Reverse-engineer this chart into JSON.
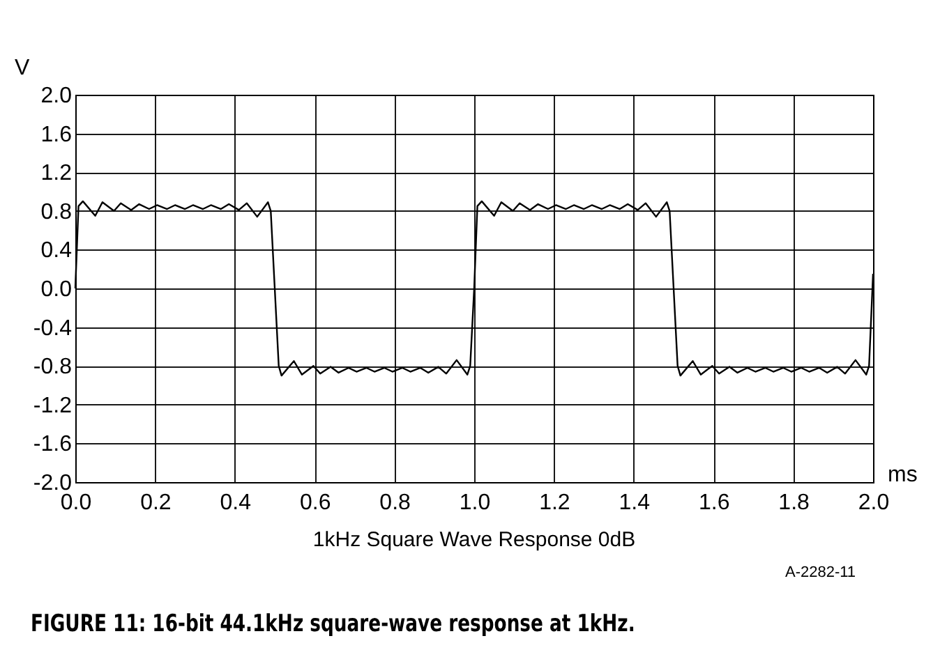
{
  "chart_data": {
    "type": "line",
    "title": "1kHz Square Wave Response 0dB",
    "xlabel": "ms",
    "ylabel": "V",
    "annotations": [
      "A-2282-11",
      "FIGURE 11: 16-bit 44.1kHz square-wave response at 1kHz."
    ],
    "x": [
      0,
      0.008,
      0.019,
      0.05,
      0.068,
      0.097,
      0.114,
      0.14,
      0.16,
      0.185,
      0.205,
      0.23,
      0.25,
      0.275,
      0.295,
      0.32,
      0.34,
      0.365,
      0.385,
      0.41,
      0.43,
      0.456,
      0.483,
      0.49,
      0.5,
      0.51,
      0.517,
      0.548,
      0.568,
      0.597,
      0.614,
      0.64,
      0.66,
      0.685,
      0.705,
      0.73,
      0.75,
      0.775,
      0.795,
      0.82,
      0.84,
      0.865,
      0.885,
      0.91,
      0.93,
      0.956,
      0.983,
      0.99,
      1.0,
      1.008,
      1.019,
      1.05,
      1.068,
      1.097,
      1.114,
      1.14,
      1.16,
      1.185,
      1.205,
      1.23,
      1.25,
      1.275,
      1.295,
      1.32,
      1.34,
      1.365,
      1.385,
      1.41,
      1.43,
      1.456,
      1.483,
      1.49,
      1.5,
      1.51,
      1.517,
      1.548,
      1.568,
      1.597,
      1.614,
      1.64,
      1.66,
      1.685,
      1.705,
      1.73,
      1.75,
      1.775,
      1.795,
      1.82,
      1.84,
      1.865,
      1.885,
      1.91,
      1.93,
      1.956,
      1.983,
      1.99,
      2.0
    ],
    "series": [
      {
        "color": "#000000",
        "values": [
          0,
          0.85,
          0.9,
          0.75,
          0.89,
          0.8,
          0.88,
          0.81,
          0.87,
          0.82,
          0.86,
          0.82,
          0.86,
          0.82,
          0.86,
          0.82,
          0.86,
          0.82,
          0.87,
          0.81,
          0.88,
          0.74,
          0.89,
          0.8,
          0,
          -0.8,
          -0.9,
          -0.75,
          -0.89,
          -0.8,
          -0.88,
          -0.81,
          -0.87,
          -0.82,
          -0.86,
          -0.82,
          -0.86,
          -0.82,
          -0.86,
          -0.82,
          -0.86,
          -0.82,
          -0.87,
          -0.81,
          -0.88,
          -0.74,
          -0.89,
          -0.8,
          0,
          0.85,
          0.9,
          0.75,
          0.89,
          0.8,
          0.88,
          0.81,
          0.87,
          0.82,
          0.86,
          0.82,
          0.86,
          0.82,
          0.86,
          0.82,
          0.86,
          0.82,
          0.87,
          0.81,
          0.88,
          0.74,
          0.89,
          0.8,
          0,
          -0.8,
          -0.9,
          -0.75,
          -0.89,
          -0.8,
          -0.88,
          -0.81,
          -0.87,
          -0.82,
          -0.86,
          -0.82,
          -0.86,
          -0.82,
          -0.86,
          -0.82,
          -0.86,
          -0.82,
          -0.87,
          -0.81,
          -0.88,
          -0.74,
          -0.89,
          -0.8,
          0.15
        ]
      }
    ],
    "xlim": [
      0,
      2
    ],
    "ylim": [
      -2,
      2
    ],
    "xticks": [
      {
        "value": 0,
        "label": "0.0"
      },
      {
        "value": 0.2,
        "label": "0.2"
      },
      {
        "value": 0.4,
        "label": "0.4"
      },
      {
        "value": 0.6,
        "label": "0.6"
      },
      {
        "value": 0.8,
        "label": "0.8"
      },
      {
        "value": 1,
        "label": "1.0"
      },
      {
        "value": 1.2,
        "label": "1.2"
      },
      {
        "value": 1.4,
        "label": "1.4"
      },
      {
        "value": 1.6,
        "label": "1.6"
      },
      {
        "value": 1.8,
        "label": "1.8"
      },
      {
        "value": 2,
        "label": "2.0"
      }
    ],
    "yticks": [
      {
        "value": -2,
        "label": "-2.0"
      },
      {
        "value": -1.6,
        "label": "-1.6"
      },
      {
        "value": -1.2,
        "label": "-1.2"
      },
      {
        "value": -0.8,
        "label": "-0.8"
      },
      {
        "value": -0.4,
        "label": "-0.4"
      },
      {
        "value": 0,
        "label": "0.0"
      },
      {
        "value": 0.4,
        "label": "0.4"
      },
      {
        "value": 0.8,
        "label": "0.8"
      },
      {
        "value": 1.2,
        "label": "1.2"
      },
      {
        "value": 1.6,
        "label": "1.6"
      },
      {
        "value": 2,
        "label": "2.0"
      }
    ],
    "grid": true,
    "marker": "none",
    "line_style": "solid"
  }
}
